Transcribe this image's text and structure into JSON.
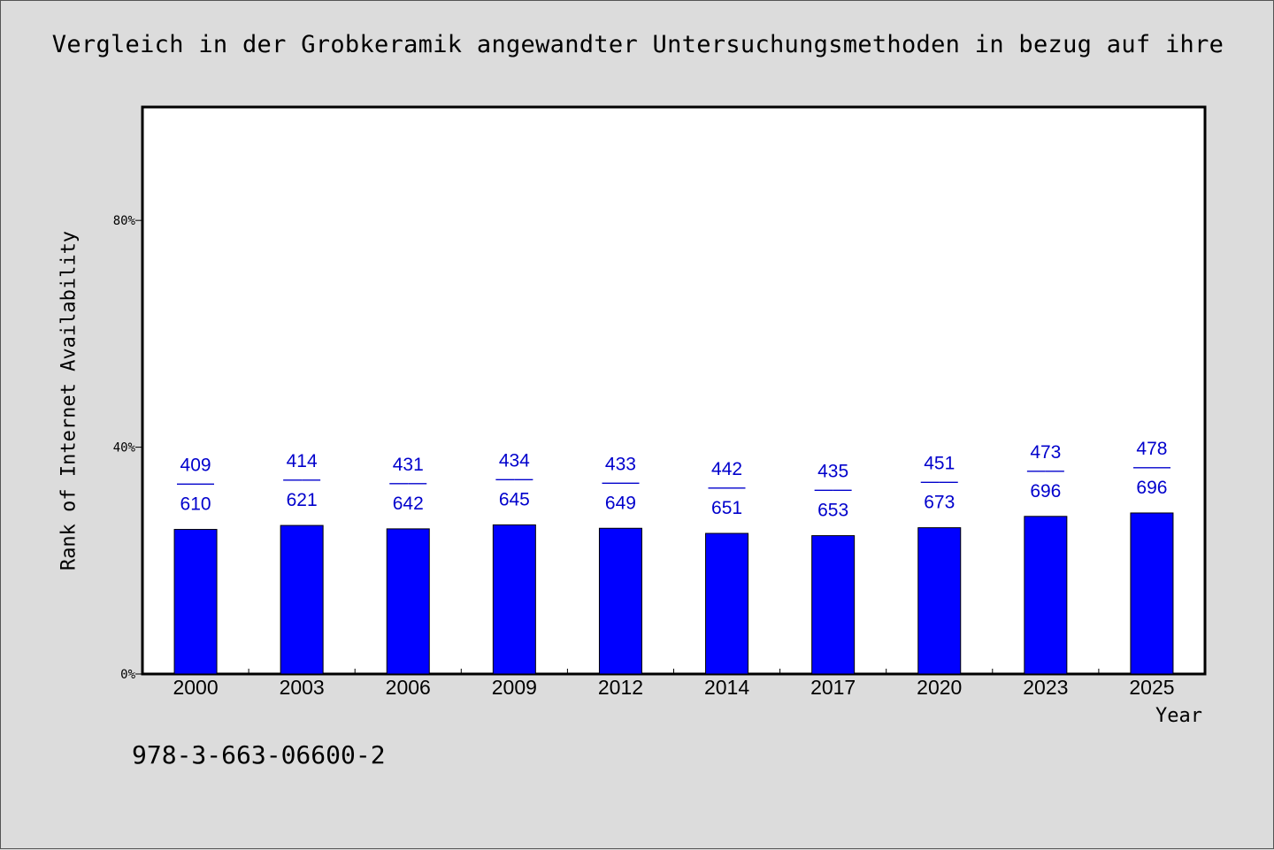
{
  "colors": {
    "background": "#dcdcdc",
    "plot_background": "#ffffff",
    "bar": "#0000ff",
    "data_label": "#0000cc",
    "axis": "#000000"
  },
  "isbn": "978-3-663-06600-2",
  "chart_data": {
    "type": "bar",
    "title": "Vergleich in der Grobkeramik angewandter Untersuchungsmethoden in bezug auf ihre",
    "xlabel": "Year",
    "ylabel": "Rank of Internet Availability",
    "categories": [
      "2000",
      "2003",
      "2006",
      "2009",
      "2012",
      "2014",
      "2017",
      "2020",
      "2023",
      "2025"
    ],
    "values": [
      25.5,
      26.2,
      25.6,
      26.3,
      25.7,
      24.8,
      24.4,
      25.8,
      27.8,
      28.4
    ],
    "label_top": [
      "409",
      "414",
      "431",
      "434",
      "433",
      "442",
      "435",
      "451",
      "473",
      "478"
    ],
    "label_bottom": [
      "610",
      "621",
      "642",
      "645",
      "649",
      "651",
      "653",
      "673",
      "696",
      "696"
    ],
    "label_separator": "——",
    "y_ticks": [
      0,
      40,
      80
    ],
    "y_tick_labels": [
      "0%",
      "40%",
      "80%"
    ],
    "ylim": [
      0,
      100
    ],
    "grid": false,
    "legend": "none"
  }
}
